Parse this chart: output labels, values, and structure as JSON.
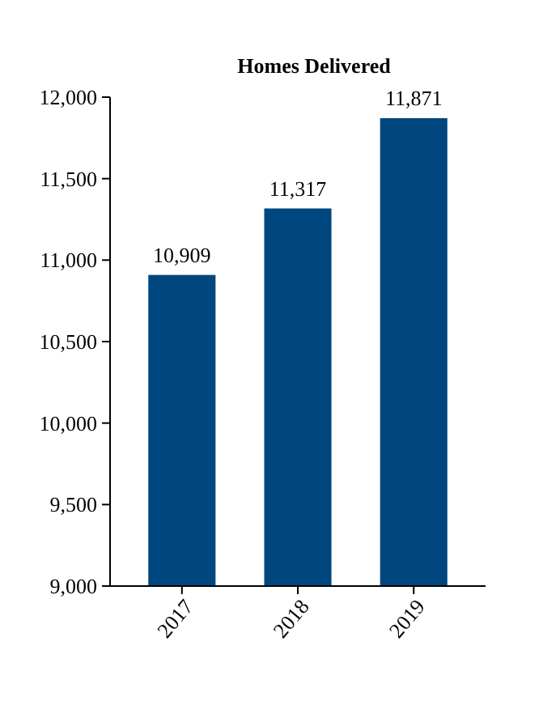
{
  "chart_data": {
    "type": "bar",
    "title": "Homes Delivered",
    "categories": [
      "2017",
      "2018",
      "2019"
    ],
    "values": [
      10909,
      11317,
      11871
    ],
    "color": "#00467f",
    "ylim": [
      9000,
      12000
    ],
    "yticks": [
      {
        "value": 9000,
        "label": "9,000"
      },
      {
        "value": 9500,
        "label": "9,500"
      },
      {
        "value": 10000,
        "label": "10,000"
      },
      {
        "value": 10500,
        "label": "10,500"
      },
      {
        "value": 11000,
        "label": "11,000"
      },
      {
        "value": 11500,
        "label": "11,500"
      },
      {
        "value": 12000,
        "label": "12,000"
      }
    ],
    "value_labels": [
      "10,909",
      "11,317",
      "11,871"
    ],
    "grid": false
  }
}
